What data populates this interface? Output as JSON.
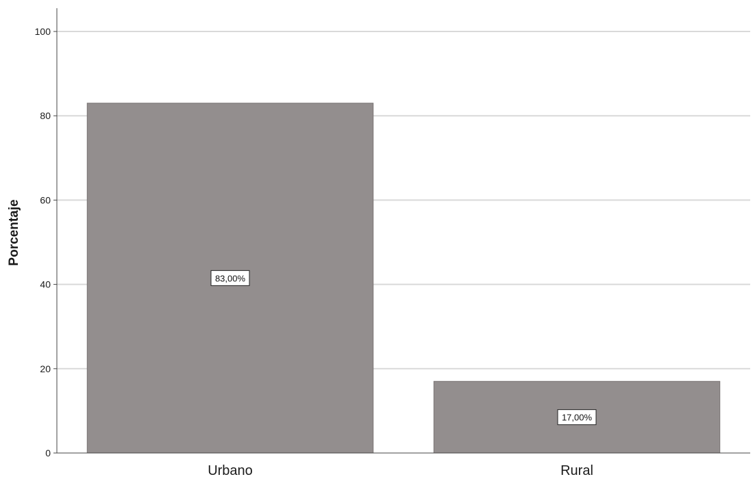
{
  "chart_data": {
    "type": "bar",
    "categories": [
      "Urbano",
      "Rural"
    ],
    "values": [
      83,
      17
    ],
    "data_labels": [
      "83,00%",
      "17,00%"
    ],
    "title": "",
    "xlabel": "",
    "ylabel": "Porcentaje",
    "ylim": [
      0,
      100
    ],
    "yticks": [
      0,
      20,
      40,
      60,
      80,
      100
    ],
    "grid": true,
    "legend": "none",
    "colors": {
      "bar": "#938e8e",
      "bar_border": "#7a7575",
      "grid": "#d9d9d9",
      "axis": "#444444",
      "text": "#1a1a1a"
    }
  }
}
